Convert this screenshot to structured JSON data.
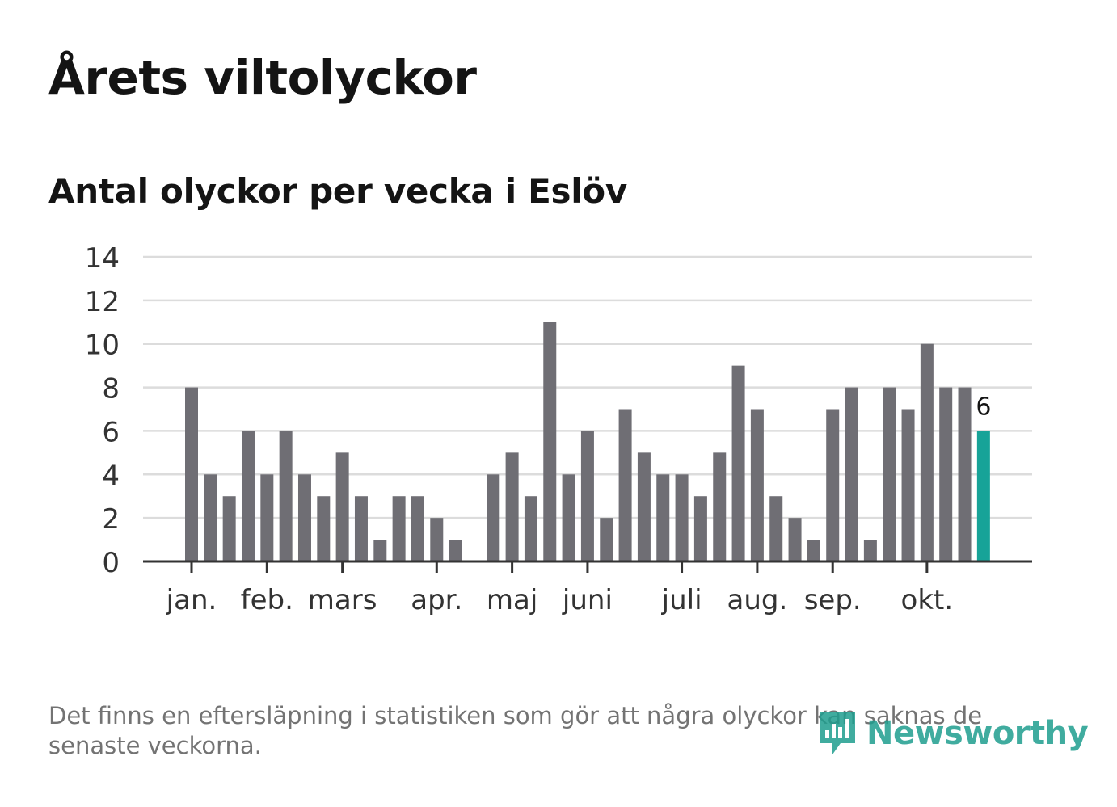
{
  "header": {
    "title": "Årets viltolyckor",
    "subtitle": "Antal olyckor per vecka i Eslöv"
  },
  "footer": {
    "note": "Det finns en eftersläpning i statistiken som gör att några olyckor kan saknas de senaste veckorna.",
    "logo_text": "Newsworthy",
    "logo_icon": "bar-chart-speech-bubble-icon"
  },
  "colors": {
    "bar": "#6f6e74",
    "highlight": "#17a398",
    "grid": "#dcdcdc",
    "axis": "#333333",
    "brand": "#1f9e8f"
  },
  "chart_data": {
    "type": "bar",
    "title": "Antal olyckor per vecka i Eslöv",
    "xlabel": "",
    "ylabel": "",
    "ylim": [
      0,
      14
    ],
    "yticks": [
      0,
      2,
      4,
      6,
      8,
      10,
      12,
      14
    ],
    "grid": true,
    "weeks": [
      1,
      2,
      3,
      4,
      5,
      6,
      7,
      8,
      9,
      10,
      11,
      12,
      13,
      14,
      15,
      16,
      17,
      18,
      19,
      20,
      21,
      22,
      23,
      24,
      25,
      26,
      27,
      28,
      29,
      30,
      31,
      32,
      33,
      34,
      35,
      36,
      37,
      38,
      39,
      40,
      41,
      42,
      43
    ],
    "values": [
      8,
      4,
      3,
      6,
      4,
      6,
      4,
      3,
      5,
      3,
      1,
      3,
      3,
      2,
      1,
      0,
      4,
      5,
      3,
      11,
      4,
      6,
      2,
      7,
      5,
      4,
      4,
      3,
      5,
      9,
      7,
      3,
      2,
      1,
      7,
      8,
      1,
      8,
      7,
      10,
      8,
      8,
      6
    ],
    "highlight_index": 42,
    "highlight_label": "6",
    "month_ticks": [
      {
        "label": "jan.",
        "week": 1
      },
      {
        "label": "feb.",
        "week": 5
      },
      {
        "label": "mars",
        "week": 9
      },
      {
        "label": "apr.",
        "week": 14
      },
      {
        "label": "maj",
        "week": 18
      },
      {
        "label": "juni",
        "week": 22
      },
      {
        "label": "juli",
        "week": 27
      },
      {
        "label": "aug.",
        "week": 31
      },
      {
        "label": "sep.",
        "week": 35
      },
      {
        "label": "okt.",
        "week": 40
      }
    ]
  }
}
